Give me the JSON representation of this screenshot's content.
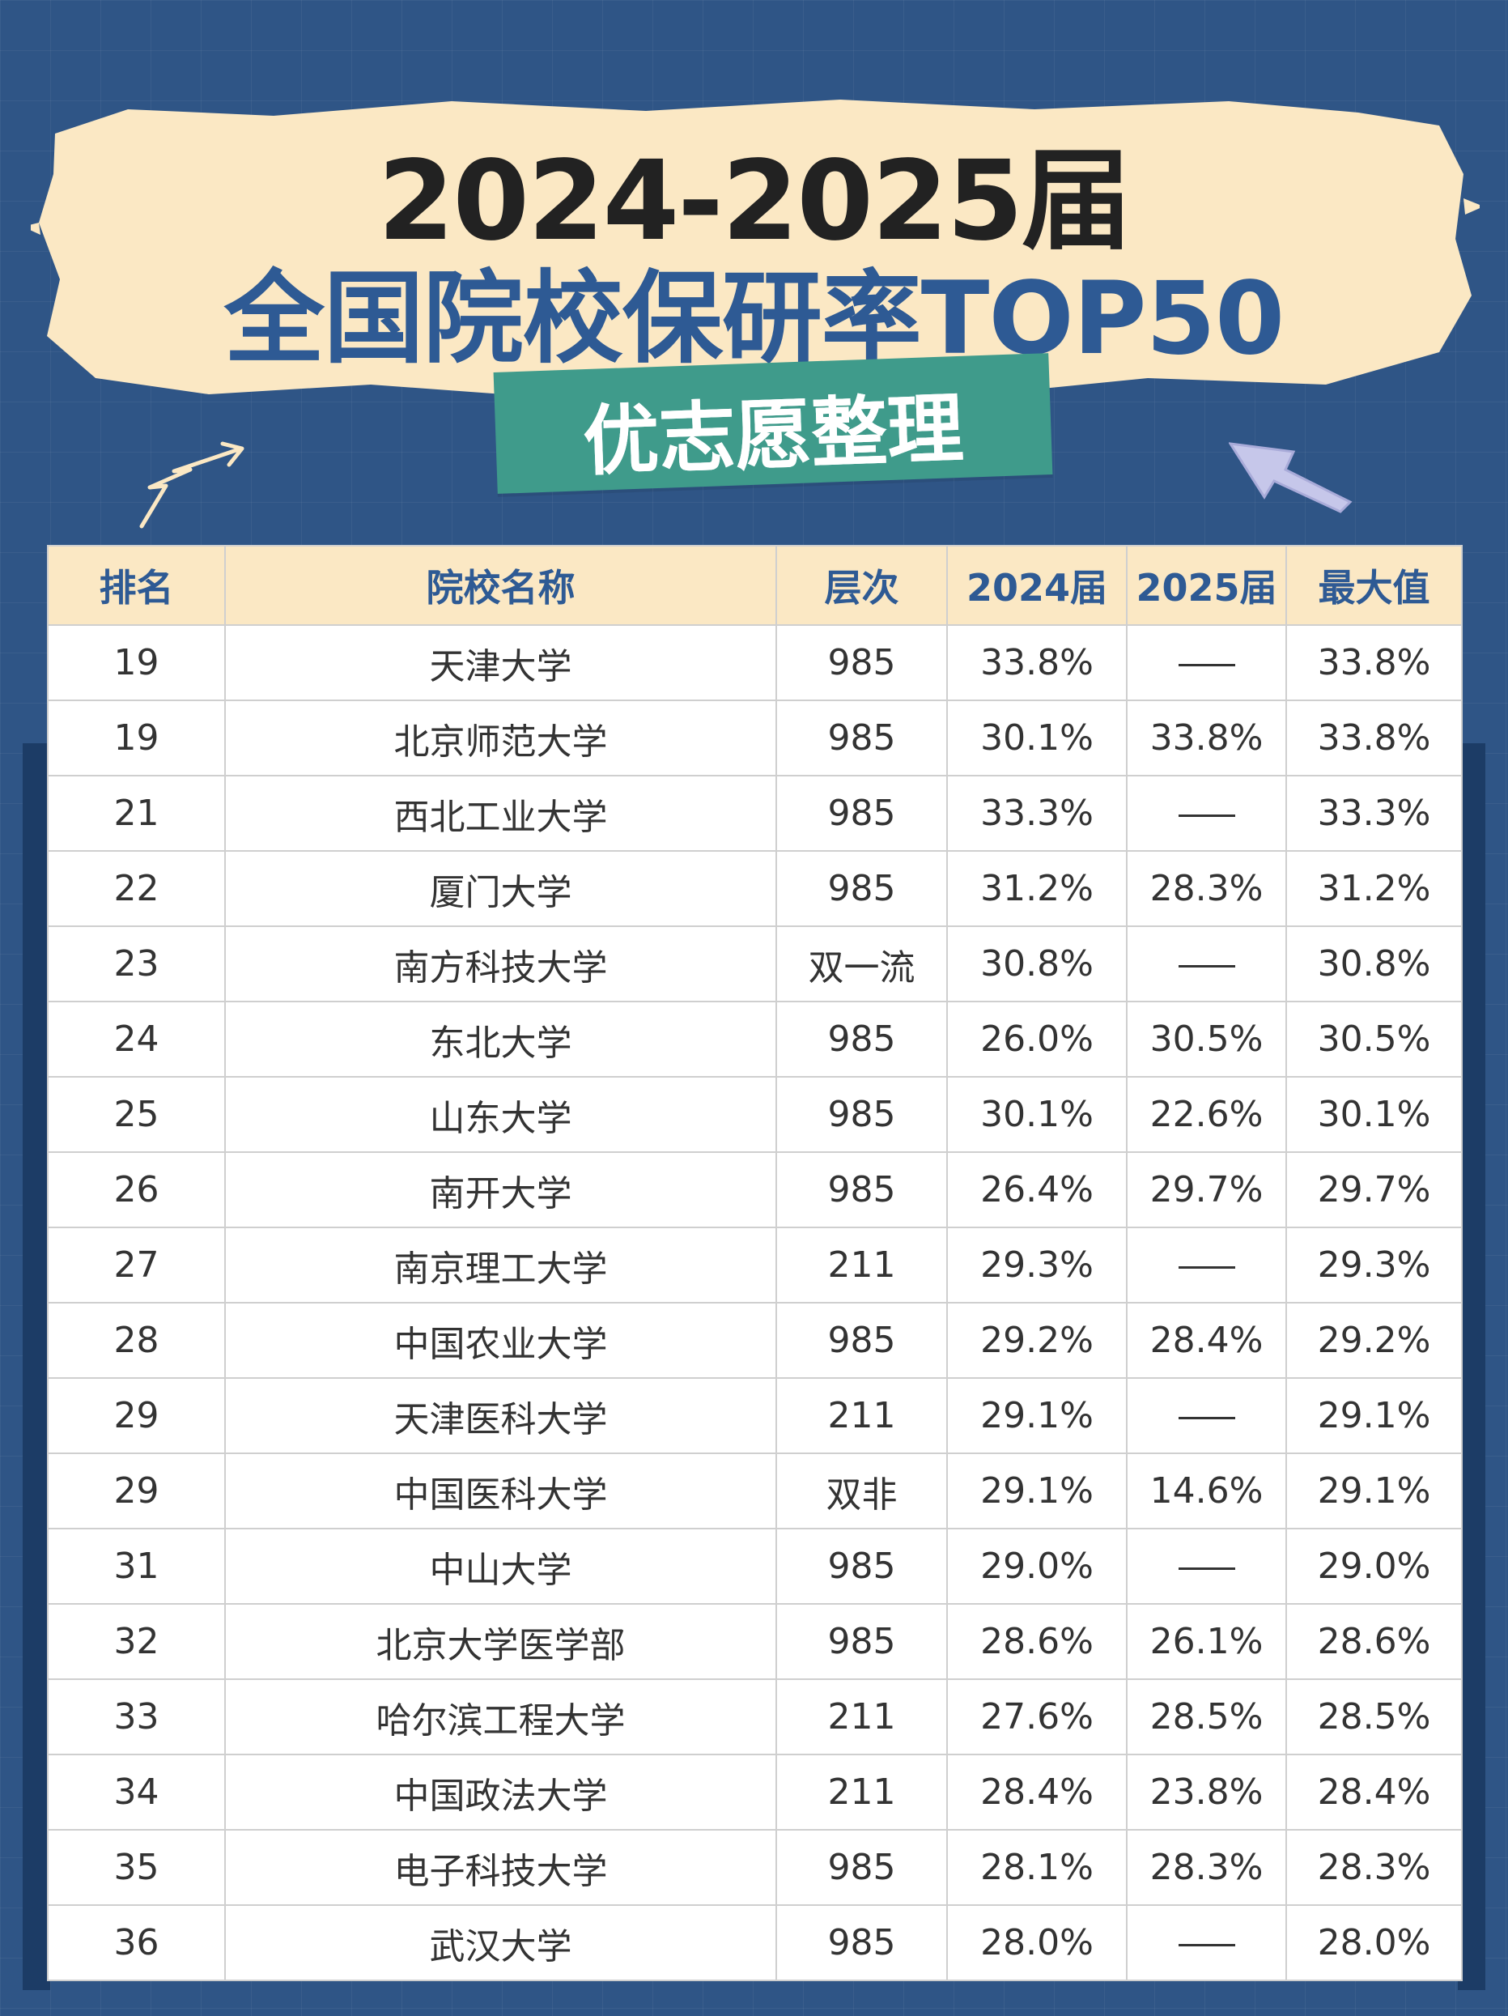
{
  "title": {
    "line1": "2024-2025届",
    "line2": "全国院校保研率TOP50",
    "tag": "优志愿整理"
  },
  "table": {
    "headers": [
      "排名",
      "院校名称",
      "层次",
      "2024届",
      "2025届",
      "最大值"
    ],
    "rows": [
      [
        "19",
        "天津大学",
        "985",
        "33.8%",
        "—",
        "33.8%"
      ],
      [
        "19",
        "北京师范大学",
        "985",
        "30.1%",
        "33.8%",
        "33.8%"
      ],
      [
        "21",
        "西北工业大学",
        "985",
        "33.3%",
        "—",
        "33.3%"
      ],
      [
        "22",
        "厦门大学",
        "985",
        "31.2%",
        "28.3%",
        "31.2%"
      ],
      [
        "23",
        "南方科技大学",
        "双一流",
        "30.8%",
        "—",
        "30.8%"
      ],
      [
        "24",
        "东北大学",
        "985",
        "26.0%",
        "30.5%",
        "30.5%"
      ],
      [
        "25",
        "山东大学",
        "985",
        "30.1%",
        "22.6%",
        "30.1%"
      ],
      [
        "26",
        "南开大学",
        "985",
        "26.4%",
        "29.7%",
        "29.7%"
      ],
      [
        "27",
        "南京理工大学",
        "211",
        "29.3%",
        "—",
        "29.3%"
      ],
      [
        "28",
        "中国农业大学",
        "985",
        "29.2%",
        "28.4%",
        "29.2%"
      ],
      [
        "29",
        "天津医科大学",
        "211",
        "29.1%",
        "—",
        "29.1%"
      ],
      [
        "29",
        "中国医科大学",
        "双非",
        "29.1%",
        "14.6%",
        "29.1%"
      ],
      [
        "31",
        "中山大学",
        "985",
        "29.0%",
        "—",
        "29.0%"
      ],
      [
        "32",
        "北京大学医学部",
        "985",
        "28.6%",
        "26.1%",
        "28.6%"
      ],
      [
        "33",
        "哈尔滨工程大学",
        "211",
        "27.6%",
        "28.5%",
        "28.5%"
      ],
      [
        "34",
        "中国政法大学",
        "211",
        "28.4%",
        "23.8%",
        "28.4%"
      ],
      [
        "35",
        "电子科技大学",
        "985",
        "28.1%",
        "28.3%",
        "28.3%"
      ],
      [
        "36",
        "武汉大学",
        "985",
        "28.0%",
        "—",
        "28.0%"
      ]
    ]
  },
  "colors": {
    "background": "#2f5586",
    "banner": "#fbe8c4",
    "title_blue": "#2e5a94",
    "tag_green": "#3f9b8b",
    "header_bg": "#fbe8c4"
  }
}
